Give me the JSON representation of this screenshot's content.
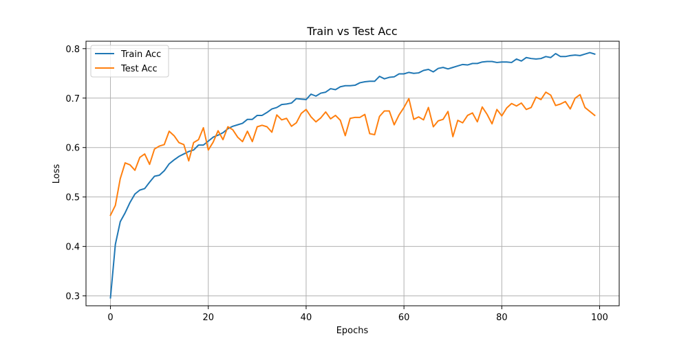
{
  "chart_data": {
    "type": "line",
    "title": "Train vs Test Acc",
    "xlabel": "Epochs",
    "ylabel": "Loss",
    "xlim": [
      -5,
      104
    ],
    "ylim": [
      0.28,
      0.815
    ],
    "xticks": [
      0,
      20,
      40,
      60,
      80,
      100
    ],
    "yticks": [
      0.3,
      0.4,
      0.5,
      0.6,
      0.7,
      0.8
    ],
    "xtick_labels": [
      "0",
      "20",
      "40",
      "60",
      "80",
      "100"
    ],
    "ytick_labels": [
      "0.3",
      "0.4",
      "0.5",
      "0.6",
      "0.7",
      "0.8"
    ],
    "grid": true,
    "legend_position": "upper-left",
    "series": [
      {
        "name": "Train Acc",
        "color": "#1f77b4",
        "x": [
          0,
          1,
          2,
          3,
          4,
          5,
          6,
          7,
          8,
          9,
          10,
          11,
          12,
          13,
          14,
          15,
          16,
          17,
          18,
          19,
          20,
          21,
          22,
          23,
          24,
          25,
          26,
          27,
          28,
          29,
          30,
          31,
          32,
          33,
          34,
          35,
          36,
          37,
          38,
          39,
          40,
          41,
          42,
          43,
          44,
          45,
          46,
          47,
          48,
          49,
          50,
          51,
          52,
          53,
          54,
          55,
          56,
          57,
          58,
          59,
          60,
          61,
          62,
          63,
          64,
          65,
          66,
          67,
          68,
          69,
          70,
          71,
          72,
          73,
          74,
          75,
          76,
          77,
          78,
          79,
          80,
          81,
          82,
          83,
          84,
          85,
          86,
          87,
          88,
          89,
          90,
          91,
          92,
          93,
          94,
          95,
          96,
          97,
          98,
          99
        ],
        "y": [
          0.296,
          0.404,
          0.45,
          0.468,
          0.489,
          0.506,
          0.514,
          0.517,
          0.53,
          0.542,
          0.544,
          0.553,
          0.567,
          0.575,
          0.582,
          0.587,
          0.592,
          0.595,
          0.605,
          0.605,
          0.613,
          0.621,
          0.625,
          0.63,
          0.638,
          0.643,
          0.646,
          0.649,
          0.657,
          0.657,
          0.665,
          0.665,
          0.671,
          0.678,
          0.681,
          0.687,
          0.688,
          0.69,
          0.699,
          0.698,
          0.697,
          0.708,
          0.704,
          0.71,
          0.712,
          0.719,
          0.717,
          0.723,
          0.725,
          0.725,
          0.726,
          0.731,
          0.733,
          0.734,
          0.734,
          0.744,
          0.739,
          0.742,
          0.743,
          0.749,
          0.749,
          0.752,
          0.75,
          0.751,
          0.756,
          0.758,
          0.753,
          0.76,
          0.762,
          0.759,
          0.762,
          0.765,
          0.768,
          0.767,
          0.77,
          0.77,
          0.773,
          0.774,
          0.774,
          0.772,
          0.773,
          0.773,
          0.772,
          0.779,
          0.775,
          0.782,
          0.78,
          0.779,
          0.78,
          0.784,
          0.782,
          0.79,
          0.784,
          0.784,
          0.786,
          0.787,
          0.786,
          0.789,
          0.792,
          0.789
        ]
      },
      {
        "name": "Test Acc",
        "color": "#ff7f0e",
        "x": [
          0,
          1,
          2,
          3,
          4,
          5,
          6,
          7,
          8,
          9,
          10,
          11,
          12,
          13,
          14,
          15,
          16,
          17,
          18,
          19,
          20,
          21,
          22,
          23,
          24,
          25,
          26,
          27,
          28,
          29,
          30,
          31,
          32,
          33,
          34,
          35,
          36,
          37,
          38,
          39,
          40,
          41,
          42,
          43,
          44,
          45,
          46,
          47,
          48,
          49,
          50,
          51,
          52,
          53,
          54,
          55,
          56,
          57,
          58,
          59,
          60,
          61,
          62,
          63,
          64,
          65,
          66,
          67,
          68,
          69,
          70,
          71,
          72,
          73,
          74,
          75,
          76,
          77,
          78,
          79,
          80,
          81,
          82,
          83,
          84,
          85,
          86,
          87,
          88,
          89,
          90,
          91,
          92,
          93,
          94,
          95,
          96,
          97,
          98,
          99
        ],
        "y": [
          0.463,
          0.483,
          0.537,
          0.569,
          0.565,
          0.554,
          0.58,
          0.587,
          0.566,
          0.597,
          0.603,
          0.606,
          0.633,
          0.624,
          0.61,
          0.606,
          0.573,
          0.61,
          0.616,
          0.64,
          0.595,
          0.611,
          0.634,
          0.616,
          0.642,
          0.636,
          0.621,
          0.612,
          0.633,
          0.612,
          0.642,
          0.645,
          0.642,
          0.631,
          0.666,
          0.656,
          0.659,
          0.643,
          0.65,
          0.669,
          0.677,
          0.662,
          0.652,
          0.66,
          0.672,
          0.658,
          0.665,
          0.655,
          0.624,
          0.659,
          0.661,
          0.661,
          0.667,
          0.628,
          0.626,
          0.663,
          0.674,
          0.674,
          0.646,
          0.666,
          0.681,
          0.699,
          0.657,
          0.662,
          0.656,
          0.681,
          0.642,
          0.654,
          0.657,
          0.673,
          0.622,
          0.655,
          0.65,
          0.665,
          0.67,
          0.652,
          0.682,
          0.667,
          0.648,
          0.677,
          0.664,
          0.68,
          0.689,
          0.684,
          0.69,
          0.677,
          0.681,
          0.702,
          0.697,
          0.712,
          0.706,
          0.685,
          0.688,
          0.693,
          0.678,
          0.7,
          0.707,
          0.681,
          0.673,
          0.665
        ]
      }
    ]
  }
}
